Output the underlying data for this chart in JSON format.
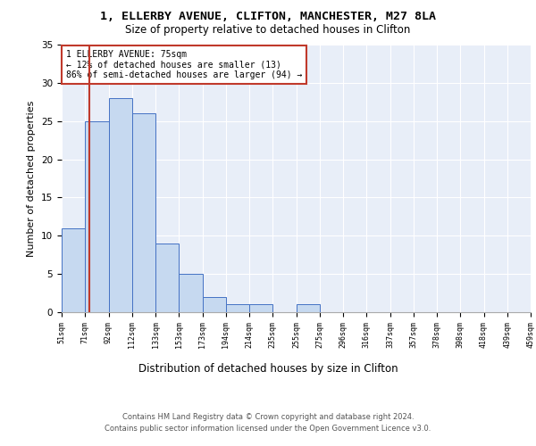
{
  "title_line1": "1, ELLERBY AVENUE, CLIFTON, MANCHESTER, M27 8LA",
  "title_line2": "Size of property relative to detached houses in Clifton",
  "xlabel": "Distribution of detached houses by size in Clifton",
  "ylabel": "Number of detached properties",
  "bins": [
    "51sqm",
    "71sqm",
    "92sqm",
    "112sqm",
    "133sqm",
    "153sqm",
    "173sqm",
    "194sqm",
    "214sqm",
    "235sqm",
    "255sqm",
    "275sqm",
    "296sqm",
    "316sqm",
    "337sqm",
    "357sqm",
    "378sqm",
    "398sqm",
    "418sqm",
    "439sqm",
    "459sqm"
  ],
  "values": [
    11,
    25,
    28,
    26,
    9,
    5,
    2,
    1,
    1,
    0,
    1,
    0,
    0,
    0,
    0,
    0,
    0,
    0,
    0,
    0
  ],
  "bar_color": "#c6d9f0",
  "bar_edge_color": "#4472c4",
  "ylim": [
    0,
    35
  ],
  "yticks": [
    0,
    5,
    10,
    15,
    20,
    25,
    30,
    35
  ],
  "property_line_color": "#c0392b",
  "annotation_text": "1 ELLERBY AVENUE: 75sqm\n← 12% of detached houses are smaller (13)\n86% of semi-detached houses are larger (94) →",
  "annotation_box_color": "#ffffff",
  "annotation_box_edge_color": "#c0392b",
  "footer_line1": "Contains HM Land Registry data © Crown copyright and database right 2024.",
  "footer_line2": "Contains public sector information licensed under the Open Government Licence v3.0.",
  "background_color": "#e8eef8"
}
